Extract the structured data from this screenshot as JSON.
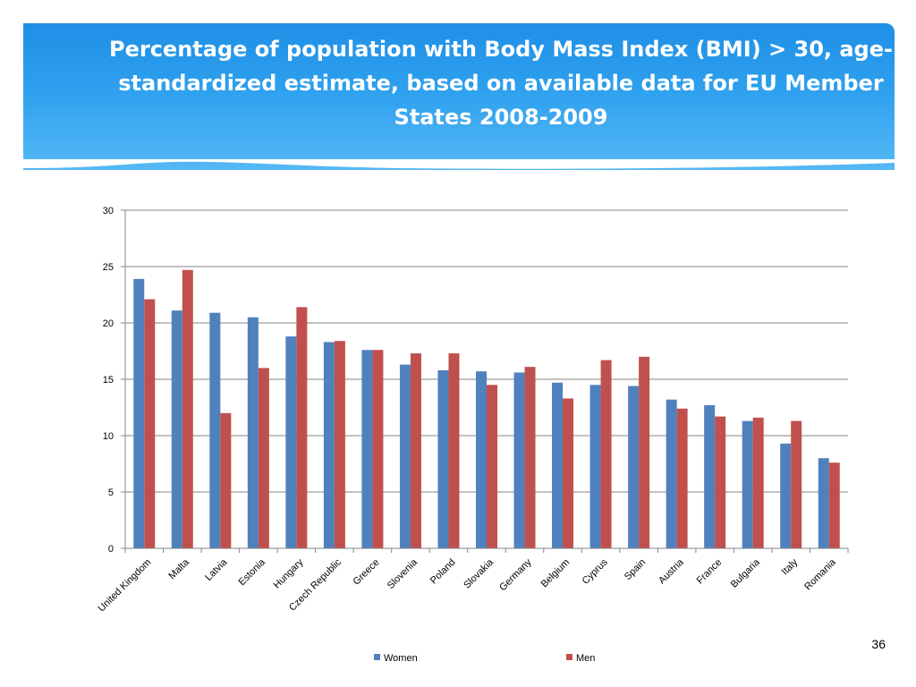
{
  "slide": {
    "title": "Percentage of population with Body Mass Index (BMI) > 30, age-standardized estimate, based on available data  for EU Member States 2008-2009",
    "page_number": "36"
  },
  "colors": {
    "banner": "#2ea0ee",
    "women": "#4f81bd",
    "men": "#c0504d",
    "gridline": "#868686"
  },
  "chart_data": {
    "type": "bar",
    "categories": [
      "United Kingdom",
      "Malta",
      "Latvia",
      "Estonia",
      "Hungary",
      "Czech Republic",
      "Greece",
      "Slovenia",
      "Poland",
      "Slovakia",
      "Germany",
      "Belgium",
      "Cyprus",
      "Spain",
      "Austria",
      "France",
      "Bulgaria",
      "Italy",
      "Romania"
    ],
    "series": [
      {
        "name": "Women",
        "values": [
          23.9,
          21.1,
          20.9,
          20.5,
          18.8,
          18.3,
          17.6,
          16.3,
          15.8,
          15.7,
          15.6,
          14.7,
          14.5,
          14.4,
          13.2,
          12.7,
          11.3,
          9.3,
          8.0
        ]
      },
      {
        "name": "Men",
        "values": [
          22.1,
          24.7,
          12.0,
          16.0,
          21.4,
          18.4,
          17.6,
          17.3,
          17.3,
          14.5,
          16.1,
          13.3,
          16.7,
          17.0,
          12.4,
          11.7,
          11.6,
          11.3,
          7.6
        ]
      }
    ],
    "title": "",
    "xlabel": "",
    "ylabel": "",
    "ylim": [
      0,
      30
    ],
    "yticks": [
      "0",
      "5",
      "10",
      "15",
      "20",
      "25",
      "30"
    ],
    "grid": true,
    "legend_position": "bottom"
  }
}
